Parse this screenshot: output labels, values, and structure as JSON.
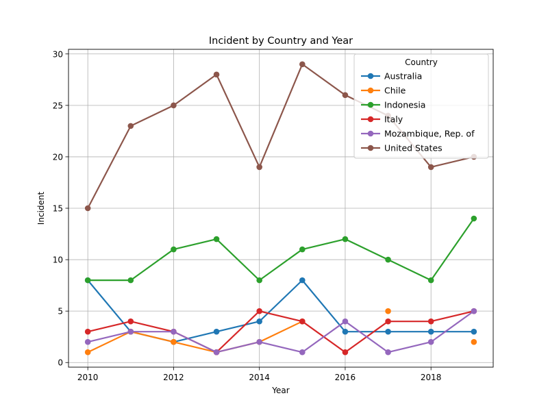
{
  "chart_data": {
    "type": "line",
    "title": "Incident by Country and Year",
    "xlabel": "Year",
    "ylabel": "Incident",
    "x": [
      2010,
      2011,
      2012,
      2013,
      2014,
      2015,
      2016,
      2017,
      2018,
      2019
    ],
    "xlim": [
      2009.55,
      2019.45
    ],
    "ylim": [
      -0.45,
      30.45
    ],
    "xticks": [
      2010,
      2012,
      2014,
      2016,
      2018
    ],
    "yticks": [
      0,
      5,
      10,
      15,
      20,
      25,
      30
    ],
    "grid": true,
    "legend": {
      "title": "Country",
      "placement": "upper right"
    },
    "series": [
      {
        "name": "Australia",
        "color": "#1f77b4",
        "values": [
          8,
          3,
          2,
          3,
          4,
          8,
          3,
          3,
          3,
          3
        ]
      },
      {
        "name": "Chile",
        "color": "#ff7f0e",
        "values": [
          1,
          3,
          2,
          1,
          2,
          4,
          null,
          5,
          null,
          2
        ]
      },
      {
        "name": "Indonesia",
        "color": "#2ca02c",
        "values": [
          8,
          8,
          11,
          12,
          8,
          11,
          12,
          10,
          8,
          14
        ]
      },
      {
        "name": "Italy",
        "color": "#d62728",
        "values": [
          3,
          4,
          3,
          1,
          5,
          4,
          1,
          4,
          4,
          5
        ]
      },
      {
        "name": "Mozambique, Rep. of",
        "color": "#9467bd",
        "values": [
          2,
          3,
          3,
          1,
          2,
          1,
          4,
          1,
          2,
          5
        ]
      },
      {
        "name": "United States",
        "color": "#8c564b",
        "values": [
          15,
          23,
          25,
          28,
          19,
          29,
          26,
          24,
          19,
          20
        ]
      }
    ]
  }
}
